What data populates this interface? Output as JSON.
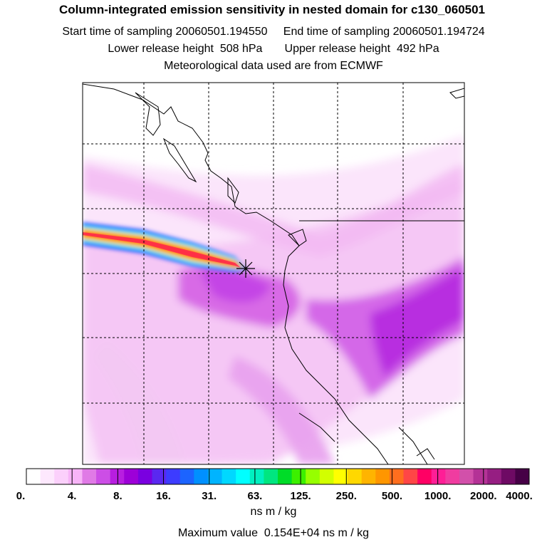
{
  "title": "Column-integrated emission sensitivity in nested domain for c130_060501",
  "sampling_line": "Start time of sampling 20060501.194550     End time of sampling 20060501.194724",
  "release_line": "Lower release height  508 hPa       Upper release height  492 hPa",
  "met_line": "Meteorological data used are from ECMWF",
  "colorbar": {
    "tick_labels": [
      "0.",
      "4.",
      "8.",
      "16.",
      "31.",
      "63.",
      "125.",
      "250.",
      "500.",
      "1000.",
      "2000.",
      "4000."
    ],
    "colors": [
      "#ffffff",
      "#fde8fd",
      "#fbd0fb",
      "#f7b4f7",
      "#e07ae6",
      "#cc4ee6",
      "#b81ee0",
      "#9d00d8",
      "#7a00e0",
      "#5a28f0",
      "#3d3cff",
      "#1c64ff",
      "#0090ff",
      "#00b4ff",
      "#00d8ff",
      "#00ffff",
      "#00f0c0",
      "#00e680",
      "#00dc28",
      "#3cf000",
      "#96ff00",
      "#d2ff00",
      "#ffff00",
      "#ffd800",
      "#ffb400",
      "#ff9600",
      "#ff6e1e",
      "#ff4646",
      "#ff0064",
      "#ff1e96",
      "#f03ca0",
      "#d250aa",
      "#b43296",
      "#961e82",
      "#6e0a64",
      "#460046"
    ]
  },
  "units": "ns m / kg",
  "max_value_line": "Maximum value  0.154E+04 ns m / kg",
  "release_marker": "release-point"
}
